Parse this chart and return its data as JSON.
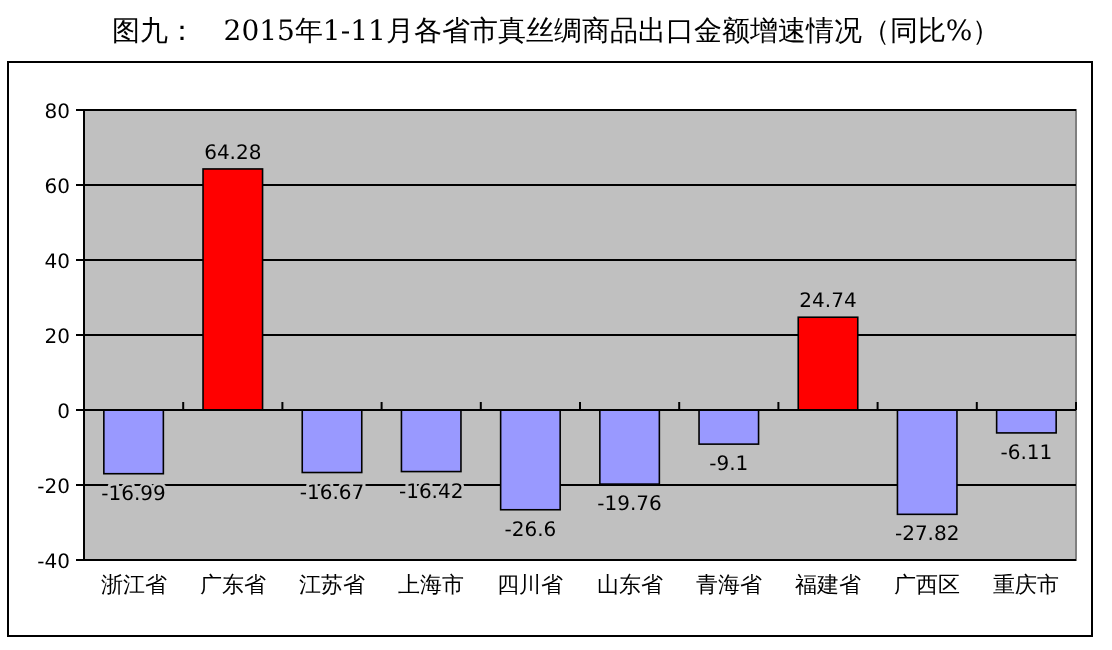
{
  "chart_data": {
    "type": "bar",
    "title": "图九：　2015年1-11月各省市真丝绸商品出口金额增速情况（同比%）",
    "categories": [
      "浙江省",
      "广东省",
      "江苏省",
      "上海市",
      "四川省",
      "山东省",
      "青海省",
      "福建省",
      "广西区",
      "重庆市"
    ],
    "values": [
      -16.99,
      64.28,
      -16.67,
      -16.42,
      -26.6,
      -19.76,
      -9.1,
      24.74,
      -27.82,
      -6.11
    ],
    "colors": [
      "#9999ff",
      "#ff0000",
      "#9999ff",
      "#9999ff",
      "#9999ff",
      "#9999ff",
      "#9999ff",
      "#ff0000",
      "#9999ff",
      "#9999ff"
    ],
    "value_labels": [
      "-16.99",
      "64.28",
      "-16.67",
      "-16.42",
      "-26.6",
      "-19.76",
      "-9.1",
      "24.74",
      "-27.82",
      "-6.11"
    ],
    "ylim": [
      -40,
      80
    ],
    "yticks": [
      -40,
      -20,
      0,
      20,
      40,
      60,
      80
    ],
    "grid": "y"
  }
}
